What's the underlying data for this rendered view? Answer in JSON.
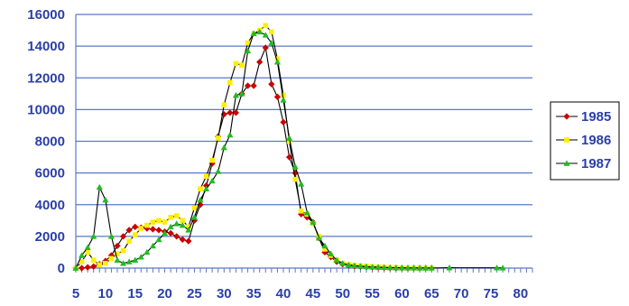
{
  "chart_data": {
    "type": "line",
    "title": "",
    "xlabel": "",
    "ylabel": "",
    "xlim": [
      5,
      82
    ],
    "ylim": [
      0,
      16000
    ],
    "grid": true,
    "legend_position": "right",
    "x_ticks": [
      "5",
      "10",
      "15",
      "20",
      "25",
      "30",
      "35",
      "40",
      "45",
      "50",
      "55",
      "60",
      "65",
      "70",
      "75",
      "80"
    ],
    "y_ticks": [
      "0",
      "2000",
      "4000",
      "6000",
      "8000",
      "10000",
      "12000",
      "14000",
      "16000"
    ],
    "colors": {
      "grid": "#5a78c8",
      "axis_text": "#2b3fa6",
      "connector_line": "#000000",
      "legend_border": "#000000"
    },
    "series": [
      {
        "name": "1985",
        "marker_color": "#cc0000",
        "marker": "diamond",
        "x": [
          5,
          6,
          7,
          8,
          9,
          10,
          11,
          12,
          13,
          14,
          15,
          16,
          17,
          18,
          19,
          20,
          21,
          22,
          23,
          24,
          25,
          26,
          27,
          28,
          29,
          30,
          31,
          32,
          33,
          34,
          35,
          36,
          37,
          38,
          39,
          40,
          41,
          42,
          43,
          44,
          45,
          46,
          47,
          48,
          49,
          50,
          51,
          52,
          53,
          54,
          55,
          56,
          57,
          58,
          59,
          60,
          61,
          62,
          63,
          64,
          65
        ],
        "y": [
          0,
          0,
          50,
          100,
          250,
          450,
          800,
          1400,
          2000,
          2400,
          2600,
          2550,
          2500,
          2450,
          2400,
          2300,
          2200,
          2000,
          1800,
          1700,
          3000,
          4000,
          5200,
          6600,
          8300,
          9700,
          9800,
          9800,
          11000,
          11500,
          11500,
          13000,
          13900,
          11600,
          10800,
          9200,
          7000,
          6000,
          3400,
          3200,
          2900,
          1900,
          1000,
          700,
          400,
          250,
          180,
          120,
          90,
          70,
          50,
          40,
          30,
          20,
          10,
          10,
          5,
          5,
          5,
          5,
          5
        ]
      },
      {
        "name": "1986",
        "marker_color": "#ffee00",
        "marker": "square",
        "x": [
          5,
          6,
          7,
          8,
          9,
          10,
          11,
          12,
          13,
          14,
          15,
          16,
          17,
          18,
          19,
          20,
          21,
          22,
          23,
          24,
          25,
          26,
          27,
          28,
          29,
          30,
          31,
          32,
          33,
          34,
          35,
          36,
          37,
          38,
          39,
          40,
          41,
          42,
          43,
          44,
          45,
          46,
          47,
          48,
          49,
          50,
          51,
          52,
          53,
          54,
          55,
          56,
          57,
          58,
          59,
          60,
          61,
          62,
          63,
          64,
          65
        ],
        "y": [
          0,
          400,
          1000,
          500,
          200,
          300,
          600,
          900,
          1100,
          1700,
          2100,
          2500,
          2700,
          2900,
          3000,
          2900,
          3200,
          3300,
          3000,
          2600,
          3800,
          5000,
          5800,
          6800,
          8200,
          10300,
          11700,
          12900,
          12800,
          14200,
          14800,
          15000,
          15300,
          14900,
          13200,
          10900,
          8000,
          5600,
          3600,
          3400,
          2800,
          2000,
          1200,
          800,
          500,
          300,
          220,
          170,
          140,
          110,
          90,
          70,
          55,
          40,
          30,
          20,
          15,
          10,
          10,
          5,
          5
        ]
      },
      {
        "name": "1987",
        "marker_color": "#22bb22",
        "marker": "triangle",
        "x": [
          5,
          6,
          7,
          8,
          9,
          10,
          11,
          12,
          13,
          14,
          15,
          16,
          17,
          18,
          19,
          20,
          21,
          22,
          23,
          24,
          25,
          26,
          27,
          28,
          29,
          30,
          31,
          32,
          33,
          34,
          35,
          36,
          37,
          38,
          39,
          40,
          41,
          42,
          43,
          44,
          45,
          46,
          47,
          48,
          49,
          50,
          51,
          52,
          53,
          54,
          55,
          56,
          57,
          58,
          59,
          60,
          61,
          62,
          63,
          64,
          65,
          68,
          76,
          77
        ],
        "y": [
          0,
          800,
          1300,
          2000,
          5100,
          4300,
          2000,
          500,
          300,
          400,
          500,
          700,
          1000,
          1400,
          1800,
          2200,
          2600,
          2800,
          2700,
          2400,
          3200,
          4300,
          5000,
          5500,
          6100,
          7600,
          8400,
          10900,
          11000,
          13700,
          14800,
          14900,
          14700,
          14200,
          13000,
          10600,
          8200,
          6400,
          5300,
          3500,
          2900,
          1900,
          1400,
          900,
          500,
          300,
          200,
          150,
          120,
          90,
          70,
          55,
          40,
          30,
          20,
          15,
          10,
          10,
          5,
          5,
          5,
          20,
          15,
          10
        ]
      }
    ]
  }
}
